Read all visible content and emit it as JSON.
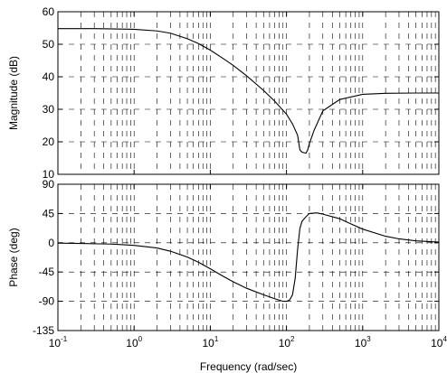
{
  "chart_data": [
    {
      "type": "line",
      "xlabel": "",
      "ylabel": "Magnitude (dB)",
      "xscale": "log",
      "xlim": [
        0.1,
        10000
      ],
      "ylim": [
        10,
        60
      ],
      "yticks": [
        10,
        20,
        30,
        40,
        50,
        60
      ],
      "ytick_labels": [
        "10",
        "20",
        "30",
        "40",
        "50",
        "60"
      ],
      "grid": true,
      "series": [
        {
          "x": [
            0.1,
            0.3,
            1,
            2,
            3,
            5,
            7,
            10,
            15,
            20,
            30,
            50,
            70,
            100,
            120,
            140,
            150,
            160,
            180,
            190,
            200,
            230,
            300,
            500,
            1000,
            2000,
            5000,
            10000
          ],
          "values": [
            54.8,
            54.8,
            54.6,
            54.1,
            53.4,
            51.7,
            50.2,
            48.2,
            45.5,
            43.5,
            40.3,
            35.8,
            32.5,
            28.5,
            25.5,
            22.0,
            17.5,
            16.8,
            16.5,
            17.5,
            19.5,
            23.5,
            29.5,
            33.0,
            34.6,
            34.9,
            35.0,
            35.0
          ]
        }
      ]
    },
    {
      "type": "line",
      "xlabel": "Frequency  (rad/sec)",
      "ylabel": "Phase (deg)",
      "xscale": "log",
      "xlim": [
        0.1,
        10000
      ],
      "ylim": [
        -135,
        90
      ],
      "yticks": [
        -135,
        -90,
        -45,
        0,
        45,
        90
      ],
      "ytick_labels": [
        "-135",
        "-90",
        "-45",
        "0",
        "45",
        "90"
      ],
      "xticks": [
        0.1,
        1,
        10,
        100,
        1000,
        10000
      ],
      "xtick_bases": [
        "10",
        "10",
        "10",
        "10",
        "10",
        "10"
      ],
      "xtick_exponents": [
        "-1",
        "0",
        "1",
        "2",
        "3",
        "4"
      ],
      "grid": true,
      "series": [
        {
          "x": [
            0.1,
            0.2,
            0.5,
            1,
            2,
            3,
            5,
            7,
            10,
            15,
            20,
            30,
            50,
            70,
            90,
            100,
            110,
            120,
            130,
            140,
            150,
            160,
            180,
            200,
            250,
            300,
            500,
            700,
            1000,
            2000,
            3000,
            5000,
            10000
          ],
          "values": [
            -0.5,
            -1,
            -2,
            -4,
            -8,
            -13,
            -22,
            -30,
            -40,
            -52,
            -60,
            -70,
            -80,
            -86,
            -90,
            -90,
            -88,
            -80,
            -55,
            -10,
            22,
            33,
            40,
            45,
            46,
            44,
            37,
            29,
            21,
            10,
            6,
            3,
            1
          ]
        }
      ]
    }
  ]
}
